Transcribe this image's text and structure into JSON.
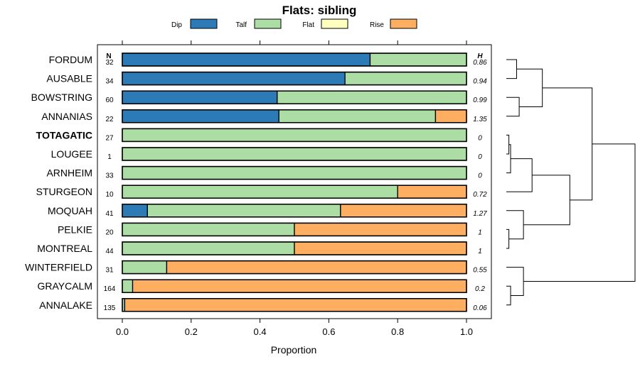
{
  "chart_data": {
    "type": "bar",
    "orientation": "horizontal",
    "stacked": true,
    "title": "Flats: sibling",
    "xlabel": "Proportion",
    "xlim": [
      0,
      1
    ],
    "xticks": [
      "0.0",
      "0.2",
      "0.4",
      "0.6",
      "0.8",
      "1.0"
    ],
    "xtick_values": [
      0,
      0.2,
      0.4,
      0.6,
      0.8,
      1.0
    ],
    "n_header": "N",
    "h_header": "H",
    "highlighted_category": "TOTAGATIC",
    "series": [
      {
        "name": "Dip",
        "color": "#2c7bb6"
      },
      {
        "name": "Talf",
        "color": "#abdda4"
      },
      {
        "name": "Flat",
        "color": "#ffffbf"
      },
      {
        "name": "Rise",
        "color": "#fdae61"
      }
    ],
    "categories": [
      {
        "name": "FORDUM",
        "n": "32",
        "h": "0.86",
        "values": [
          0.72,
          0.28,
          0,
          0
        ]
      },
      {
        "name": "AUSABLE",
        "n": "34",
        "h": "0.94",
        "values": [
          0.647,
          0.353,
          0,
          0
        ]
      },
      {
        "name": "BOWSTRING",
        "n": "60",
        "h": "0.99",
        "values": [
          0.45,
          0.55,
          0,
          0
        ]
      },
      {
        "name": "ANNANIAS",
        "n": "22",
        "h": "1.35",
        "values": [
          0.455,
          0.455,
          0,
          0.09
        ]
      },
      {
        "name": "TOTAGATIC",
        "n": "27",
        "h": "0",
        "values": [
          0,
          1,
          0,
          0
        ]
      },
      {
        "name": "LOUGEE",
        "n": "1",
        "h": "0",
        "values": [
          0,
          1,
          0,
          0
        ]
      },
      {
        "name": "ARNHEIM",
        "n": "33",
        "h": "0",
        "values": [
          0,
          1,
          0,
          0
        ]
      },
      {
        "name": "STURGEON",
        "n": "10",
        "h": "0.72",
        "values": [
          0,
          0.8,
          0,
          0.2
        ]
      },
      {
        "name": "MOQUAH",
        "n": "41",
        "h": "1.27",
        "values": [
          0.073,
          0.561,
          0,
          0.366
        ]
      },
      {
        "name": "PELKIE",
        "n": "20",
        "h": "1",
        "values": [
          0,
          0.5,
          0,
          0.5
        ]
      },
      {
        "name": "MONTREAL",
        "n": "44",
        "h": "1",
        "values": [
          0,
          0.5,
          0,
          0.5
        ]
      },
      {
        "name": "WINTERFIELD",
        "n": "31",
        "h": "0.55",
        "values": [
          0,
          0.129,
          0,
          0.871
        ]
      },
      {
        "name": "GRAYCALM",
        "n": "164",
        "h": "0.2",
        "values": [
          0,
          0.03,
          0,
          0.97
        ]
      },
      {
        "name": "ANNALAKE",
        "n": "135",
        "h": "0.06",
        "values": [
          0,
          0.007,
          0,
          0.993
        ]
      }
    ],
    "dendrogram": {
      "description": "hierarchical clustering of rows (leaf order top to bottom)",
      "leaf_order": [
        "FORDUM",
        "AUSABLE",
        "BOWSTRING",
        "ANNANIAS",
        "TOTAGATIC",
        "LOUGEE",
        "ARNHEIM",
        "STURGEON",
        "MOQUAH",
        "PELKIE",
        "MONTREAL",
        "WINTERFIELD",
        "GRAYCALM",
        "ANNALAKE"
      ],
      "merges": [
        {
          "a": 0,
          "b": 1,
          "height": 0.12
        },
        {
          "a": 2,
          "b": 3,
          "height": 0.15
        },
        {
          "a": "m0",
          "b": "m1",
          "height": 0.42
        },
        {
          "a": 4,
          "b": 5,
          "height": 0.03
        },
        {
          "a": "m3",
          "b": 6,
          "height": 0.05
        },
        {
          "a": "m4",
          "b": 7,
          "height": 0.3
        },
        {
          "a": 9,
          "b": 10,
          "height": 0.03
        },
        {
          "a": 8,
          "b": "m6",
          "height": 0.2
        },
        {
          "a": "m5",
          "b": "m7",
          "height": 0.74
        },
        {
          "a": "m2",
          "b": "m8",
          "height": 1.0
        },
        {
          "a": 12,
          "b": 13,
          "height": 0.05
        },
        {
          "a": 11,
          "b": "m10",
          "height": 0.2
        },
        {
          "a": "m9",
          "b": "m11",
          "height": 1.5
        }
      ]
    }
  }
}
